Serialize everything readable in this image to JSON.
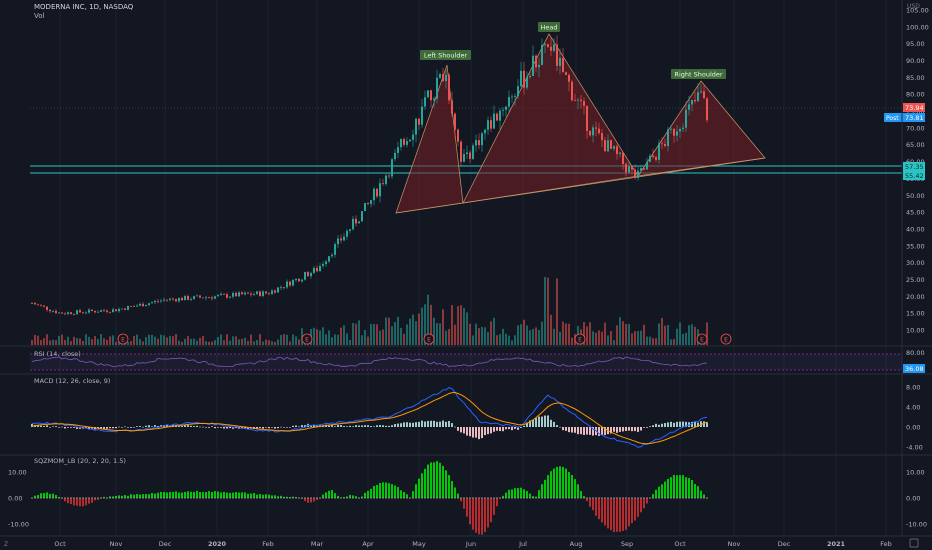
{
  "header": {
    "title": "MODERNA INC, 1D, NASDAQ",
    "volume_label": "Vol"
  },
  "patterns": {
    "left_shoulder": "Left Shoulder",
    "head": "Head",
    "right_shoulder": "Right Shoulder"
  },
  "price_axis": {
    "currency": "USD",
    "ticks": [
      "105.00",
      "100.00",
      "95.00",
      "90.00",
      "85.00",
      "80.00",
      "75.00",
      "70.00",
      "65.00",
      "60.00",
      "55.00",
      "50.00",
      "45.00",
      "40.00",
      "35.00",
      "30.00",
      "25.00",
      "20.00",
      "15.00",
      "10.00"
    ]
  },
  "price_tags": {
    "last": "73.94",
    "post_label": "Post",
    "post": "73.81",
    "level_upper": "57.35",
    "level_lower": "55.42"
  },
  "x_axis": {
    "labels": [
      "Oct",
      "Nov",
      "Dec",
      "2020",
      "Feb",
      "Mar",
      "Apr",
      "May",
      "Jun",
      "Jul",
      "Aug",
      "Sep",
      "Oct",
      "Nov",
      "Dec",
      "2021",
      "Feb"
    ]
  },
  "earnings_markers": [
    "E",
    "E",
    "E",
    "E",
    "E",
    "E"
  ],
  "rsi": {
    "title": "RSI (14, close)",
    "ticks": [
      "80.00"
    ],
    "value_tag": "36.08"
  },
  "macd": {
    "title": "MACD (12, 26, close, 9)",
    "ticks": [
      "8.00",
      "4.00",
      "0.00",
      "-4.00"
    ]
  },
  "squeeze": {
    "title": "SQZMOM_LB (20, 2, 20, 1.5)",
    "ticks": [
      "10.00",
      "0.00",
      "-10.00"
    ]
  },
  "corner": {
    "left_icon": "Z"
  },
  "colors": {
    "background": "#131722",
    "up": "#26a69a",
    "down": "#ef5350",
    "level_lines": "#2bc4c4",
    "pattern_fill": "#7a1f24",
    "pattern_stroke": "#c9966a",
    "label_bg": "#3f6b3a",
    "macd_line": "#2962ff",
    "signal_line": "#ff9800",
    "rsi_line": "#7e57c2",
    "squeeze_pos": "#00e600",
    "squeeze_neg": "#d32f2f",
    "last_tag": "#ef5350",
    "post_tag": "#2196f3"
  },
  "chart_data": {
    "type": "candlestick",
    "title": "MODERNA INC, 1D, NASDAQ",
    "ylim": [
      8,
      106
    ],
    "price_path": [
      {
        "month": "Sep 2019",
        "close": 18
      },
      {
        "month": "Oct 2019",
        "close": 15
      },
      {
        "month": "Nov 2019",
        "close": 16
      },
      {
        "month": "Dec 2019",
        "close": 19
      },
      {
        "month": "Jan 2020",
        "close": 20
      },
      {
        "month": "Feb 2020",
        "close": 21
      },
      {
        "month": "Mar 2020",
        "close": 28
      },
      {
        "month": "Apr 2020",
        "close": 47
      },
      {
        "month": "May 2020",
        "close": 87
      },
      {
        "month": "Jun 2020",
        "close": 60
      },
      {
        "month": "Jul 2020",
        "close": 95
      },
      {
        "month": "Aug 2020",
        "close": 70
      },
      {
        "month": "Sep 2020",
        "close": 55
      },
      {
        "month": "Oct 2020",
        "close": 80
      },
      {
        "month": "Oct 2020 (last)",
        "close": 73.94
      }
    ],
    "horizontal_levels": [
      57.35,
      55.42
    ],
    "head_and_shoulders": {
      "left_shoulder_peak": 87,
      "head_peak": 95,
      "right_shoulder_peak": 80,
      "neckline_from": 44,
      "neckline_to": 60
    }
  }
}
